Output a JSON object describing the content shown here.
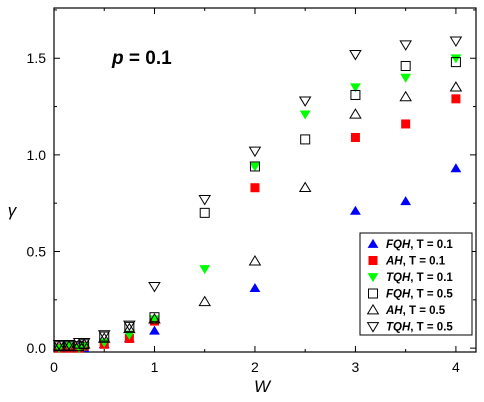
{
  "chart_data": {
    "type": "scatter",
    "xlabel": "W",
    "ylabel": "γ",
    "annotation": {
      "label": "p",
      "text": " = 0.1"
    },
    "xlim": [
      0,
      4.2
    ],
    "ylim": [
      -0.02,
      1.76
    ],
    "xticks": [
      0,
      1,
      2,
      3,
      4
    ],
    "yticks": [
      0.0,
      0.5,
      1.0,
      1.5
    ],
    "ytick_labels": [
      "0.0",
      "0.5",
      "1.0",
      "1.5"
    ],
    "grid": false,
    "legend_position": "bottom-right",
    "series": [
      {
        "name": "FQH, T = 0.1",
        "name_italic": "FQH",
        "name_rest": ", T = 0.1",
        "marker": "triangle-up",
        "filled": true,
        "color": "#0000ff",
        "x": [
          0.05,
          0.15,
          0.25,
          0.3,
          0.5,
          0.75,
          1.0,
          2.0,
          3.0,
          3.5,
          4.0
        ],
        "y": [
          0.0,
          0.0,
          0.01,
          0.0,
          0.02,
          0.05,
          0.09,
          0.31,
          0.71,
          0.76,
          0.93
        ]
      },
      {
        "name": "AH, T = 0.1",
        "name_italic": "AH",
        "name_rest": ", T = 0.1",
        "marker": "square",
        "filled": true,
        "color": "#ff0000",
        "x": [
          0.05,
          0.15,
          0.25,
          0.3,
          0.5,
          0.75,
          1.0,
          2.0,
          3.0,
          3.5,
          4.0
        ],
        "y": [
          0.0,
          0.0,
          0.0,
          0.01,
          0.02,
          0.05,
          0.14,
          0.83,
          1.09,
          1.16,
          1.29
        ]
      },
      {
        "name": "TQH, T = 0.1",
        "name_italic": "TQH",
        "name_rest": ", T = 0.1",
        "marker": "triangle-down",
        "filled": true,
        "color": "#00ff00",
        "x": [
          0.05,
          0.15,
          0.25,
          0.3,
          0.5,
          0.75,
          1.0,
          1.5,
          2.0,
          2.5,
          3.0,
          3.5,
          4.0
        ],
        "y": [
          0.0,
          0.01,
          0.0,
          0.01,
          0.03,
          0.07,
          0.15,
          0.41,
          0.94,
          1.21,
          1.35,
          1.4,
          1.5
        ]
      },
      {
        "name": "FQH, T = 0.5",
        "name_italic": "FQH",
        "name_rest": ", T = 0.5",
        "marker": "square",
        "filled": false,
        "color": "#000000",
        "x": [
          0.05,
          0.15,
          0.25,
          0.3,
          0.5,
          0.75,
          1.0,
          1.5,
          2.0,
          2.5,
          3.0,
          3.5,
          4.0
        ],
        "y": [
          0.01,
          0.01,
          0.01,
          0.02,
          0.06,
          0.11,
          0.16,
          0.7,
          0.94,
          1.08,
          1.31,
          1.46,
          1.48
        ]
      },
      {
        "name": "AH, T = 0.5",
        "name_italic": "AH",
        "name_rest": ", T = 0.5",
        "marker": "triangle-up",
        "filled": false,
        "color": "#000000",
        "x": [
          0.05,
          0.15,
          0.25,
          0.3,
          0.5,
          0.75,
          1.0,
          1.5,
          2.0,
          2.5,
          3.0,
          3.5,
          4.0
        ],
        "y": [
          0.01,
          0.01,
          0.02,
          0.02,
          0.05,
          0.1,
          0.15,
          0.24,
          0.45,
          0.83,
          1.21,
          1.3,
          1.35
        ]
      },
      {
        "name": "TQH, T = 0.5",
        "name_italic": "TQH",
        "name_rest": ", T = 0.5",
        "marker": "triangle-down",
        "filled": false,
        "color": "#000000",
        "x": [
          0.05,
          0.15,
          0.25,
          0.3,
          0.5,
          0.75,
          1.0,
          1.5,
          2.0,
          2.5,
          3.0,
          3.5,
          4.0
        ],
        "y": [
          0.02,
          0.02,
          0.03,
          0.03,
          0.07,
          0.12,
          0.32,
          0.77,
          1.02,
          1.28,
          1.52,
          1.57,
          1.59
        ]
      }
    ]
  }
}
